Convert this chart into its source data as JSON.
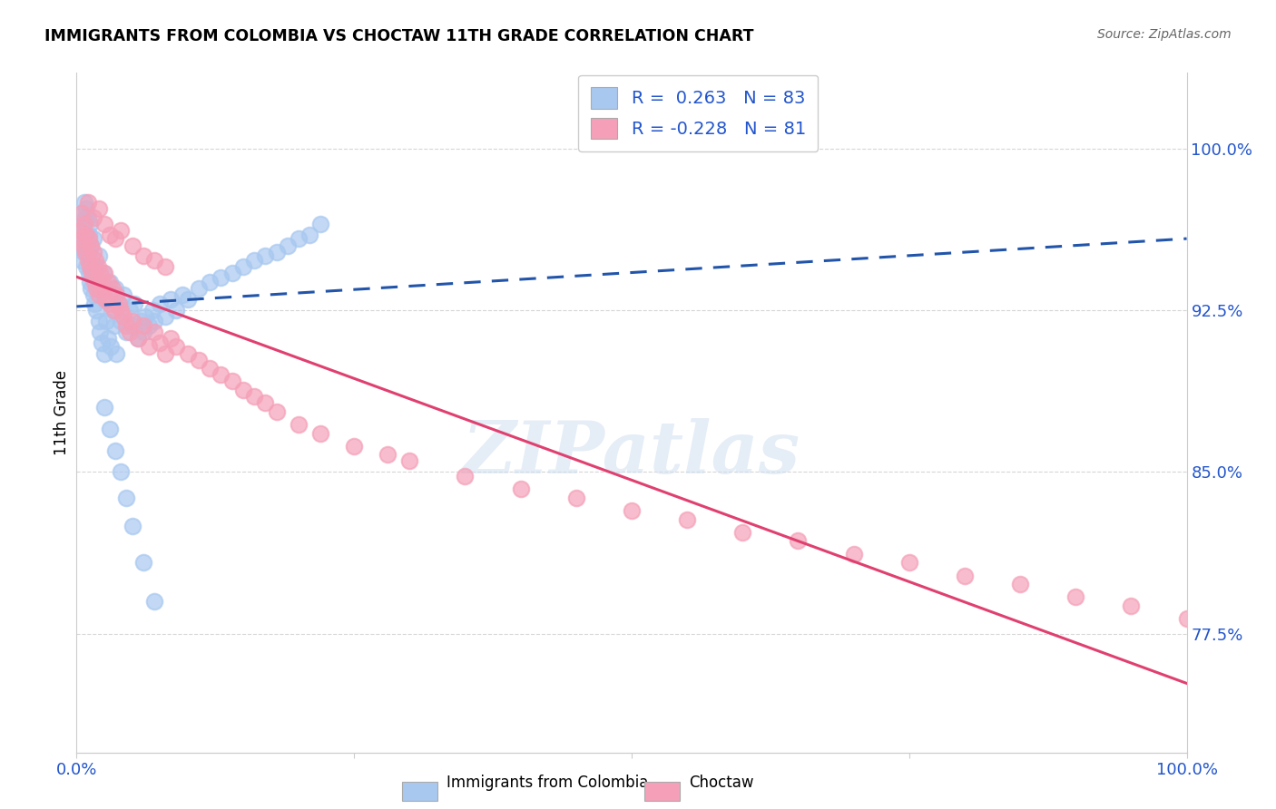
{
  "title": "IMMIGRANTS FROM COLOMBIA VS CHOCTAW 11TH GRADE CORRELATION CHART",
  "source": "Source: ZipAtlas.com",
  "ylabel": "11th Grade",
  "xlim": [
    0.0,
    1.0
  ],
  "ylim": [
    0.72,
    1.035
  ],
  "r_colombia": 0.263,
  "n_colombia": 83,
  "r_choctaw": -0.228,
  "n_choctaw": 81,
  "blue_color": "#A8C8F0",
  "pink_color": "#F5A0B8",
  "trend_blue": "#2255AA",
  "trend_pink": "#E04070",
  "legend_blue_label": "Immigrants from Colombia",
  "legend_pink_label": "Choctaw",
  "colombia_x": [
    0.003,
    0.004,
    0.005,
    0.005,
    0.006,
    0.006,
    0.007,
    0.007,
    0.008,
    0.008,
    0.009,
    0.009,
    0.01,
    0.01,
    0.011,
    0.011,
    0.012,
    0.012,
    0.013,
    0.013,
    0.014,
    0.015,
    0.015,
    0.016,
    0.017,
    0.018,
    0.019,
    0.02,
    0.02,
    0.021,
    0.022,
    0.023,
    0.024,
    0.025,
    0.026,
    0.027,
    0.028,
    0.03,
    0.031,
    0.032,
    0.034,
    0.035,
    0.036,
    0.038,
    0.04,
    0.042,
    0.045,
    0.048,
    0.05,
    0.052,
    0.055,
    0.058,
    0.06,
    0.062,
    0.065,
    0.068,
    0.07,
    0.075,
    0.08,
    0.085,
    0.09,
    0.095,
    0.1,
    0.11,
    0.12,
    0.13,
    0.14,
    0.15,
    0.16,
    0.17,
    0.18,
    0.19,
    0.2,
    0.21,
    0.22,
    0.025,
    0.03,
    0.035,
    0.04,
    0.045,
    0.05,
    0.06,
    0.07
  ],
  "colombia_y": [
    0.955,
    0.962,
    0.948,
    0.97,
    0.952,
    0.965,
    0.96,
    0.975,
    0.958,
    0.968,
    0.945,
    0.972,
    0.95,
    0.968,
    0.942,
    0.96,
    0.938,
    0.965,
    0.935,
    0.955,
    0.94,
    0.932,
    0.958,
    0.928,
    0.945,
    0.925,
    0.938,
    0.92,
    0.95,
    0.915,
    0.935,
    0.91,
    0.942,
    0.905,
    0.93,
    0.92,
    0.912,
    0.938,
    0.908,
    0.925,
    0.918,
    0.935,
    0.905,
    0.928,
    0.92,
    0.932,
    0.915,
    0.925,
    0.918,
    0.928,
    0.912,
    0.92,
    0.915,
    0.922,
    0.918,
    0.925,
    0.92,
    0.928,
    0.922,
    0.93,
    0.925,
    0.932,
    0.93,
    0.935,
    0.938,
    0.94,
    0.942,
    0.945,
    0.948,
    0.95,
    0.952,
    0.955,
    0.958,
    0.96,
    0.965,
    0.88,
    0.87,
    0.86,
    0.85,
    0.838,
    0.825,
    0.808,
    0.79
  ],
  "choctaw_x": [
    0.003,
    0.004,
    0.005,
    0.006,
    0.007,
    0.008,
    0.009,
    0.01,
    0.011,
    0.012,
    0.013,
    0.014,
    0.015,
    0.016,
    0.017,
    0.018,
    0.019,
    0.02,
    0.021,
    0.022,
    0.023,
    0.025,
    0.026,
    0.028,
    0.03,
    0.032,
    0.034,
    0.036,
    0.038,
    0.04,
    0.042,
    0.045,
    0.048,
    0.05,
    0.055,
    0.06,
    0.065,
    0.07,
    0.075,
    0.08,
    0.085,
    0.09,
    0.1,
    0.11,
    0.12,
    0.13,
    0.14,
    0.15,
    0.16,
    0.17,
    0.18,
    0.2,
    0.22,
    0.25,
    0.28,
    0.3,
    0.35,
    0.4,
    0.45,
    0.5,
    0.55,
    0.6,
    0.65,
    0.7,
    0.75,
    0.8,
    0.85,
    0.9,
    0.95,
    1.0,
    0.01,
    0.015,
    0.02,
    0.025,
    0.03,
    0.035,
    0.04,
    0.05,
    0.06,
    0.07,
    0.08
  ],
  "choctaw_y": [
    0.962,
    0.958,
    0.97,
    0.955,
    0.965,
    0.952,
    0.96,
    0.948,
    0.958,
    0.945,
    0.955,
    0.942,
    0.952,
    0.938,
    0.948,
    0.935,
    0.945,
    0.932,
    0.942,
    0.938,
    0.935,
    0.942,
    0.93,
    0.938,
    0.928,
    0.935,
    0.925,
    0.932,
    0.928,
    0.925,
    0.922,
    0.918,
    0.915,
    0.92,
    0.912,
    0.918,
    0.908,
    0.915,
    0.91,
    0.905,
    0.912,
    0.908,
    0.905,
    0.902,
    0.898,
    0.895,
    0.892,
    0.888,
    0.885,
    0.882,
    0.878,
    0.872,
    0.868,
    0.862,
    0.858,
    0.855,
    0.848,
    0.842,
    0.838,
    0.832,
    0.828,
    0.822,
    0.818,
    0.812,
    0.808,
    0.802,
    0.798,
    0.792,
    0.788,
    0.782,
    0.975,
    0.968,
    0.972,
    0.965,
    0.96,
    0.958,
    0.962,
    0.955,
    0.95,
    0.948,
    0.945
  ]
}
